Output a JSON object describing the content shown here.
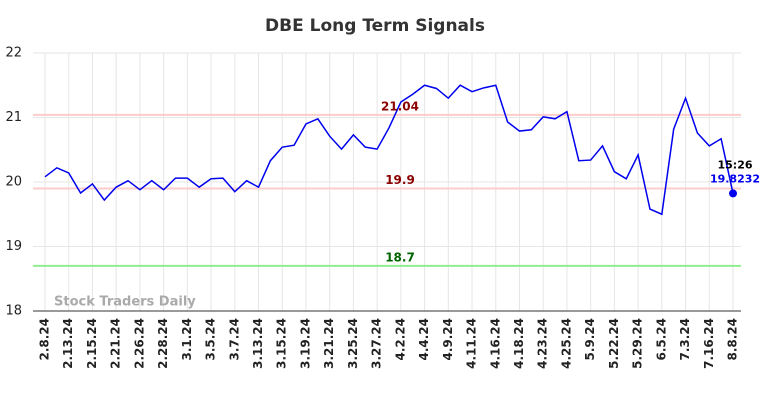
{
  "chart_data": {
    "type": "line",
    "title": "DBE Long Term Signals",
    "categories": [
      "2.8.24",
      null,
      "2.13.24",
      null,
      "2.15.24",
      null,
      "2.21.24",
      null,
      "2.26.24",
      null,
      "2.28.24",
      null,
      "3.1.24",
      null,
      "3.5.24",
      null,
      "3.7.24",
      null,
      "3.13.24",
      null,
      "3.15.24",
      null,
      "3.19.24",
      null,
      "3.21.24",
      null,
      "3.25.24",
      null,
      "3.27.24",
      null,
      "4.2.24",
      null,
      "4.4.24",
      null,
      "4.9.24",
      null,
      "4.11.24",
      null,
      "4.16.24",
      null,
      "4.18.24",
      null,
      "4.23.24",
      null,
      "4.25.24",
      null,
      "5.9.24",
      null,
      "5.22.24",
      null,
      "5.29.24",
      null,
      "6.5.24",
      null,
      "7.3.24",
      null,
      "7.16.24",
      null,
      "8.8.24"
    ],
    "series": [
      {
        "name": "DBE",
        "color": "#0000ee",
        "values": [
          20.08,
          20.22,
          20.14,
          19.83,
          19.97,
          19.72,
          19.92,
          20.02,
          19.88,
          20.02,
          19.88,
          20.06,
          20.06,
          19.92,
          20.05,
          20.06,
          19.85,
          20.02,
          19.92,
          20.33,
          20.54,
          20.57,
          20.9,
          20.98,
          20.71,
          20.51,
          20.73,
          20.54,
          20.51,
          20.84,
          21.24,
          21.36,
          21.5,
          21.45,
          21.3,
          21.5,
          21.4,
          21.46,
          21.5,
          20.93,
          20.79,
          20.81,
          21.01,
          20.98,
          21.09,
          20.33,
          20.34,
          20.56,
          20.16,
          20.05,
          20.42,
          19.58,
          19.5,
          20.82,
          21.3,
          20.76,
          20.56,
          20.67,
          19.8232
        ]
      }
    ],
    "ylim": [
      18,
      22
    ],
    "yticks": [
      18,
      19,
      20,
      21,
      22
    ],
    "grid": true,
    "hlines": [
      {
        "value": 21.04,
        "color": "#ffcccc",
        "label_color": "#8b0000"
      },
      {
        "value": 19.9,
        "color": "#ffcccc",
        "label_color": "#8b0000"
      },
      {
        "value": 18.7,
        "color": "#90ee90",
        "label_color": "#006400"
      }
    ],
    "last_time": "15:26",
    "watermark": "Stock Traders Daily"
  }
}
